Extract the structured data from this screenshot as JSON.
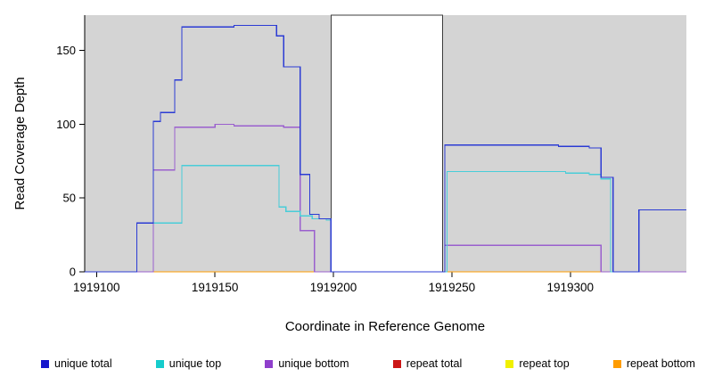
{
  "chart_data": {
    "type": "line",
    "title": "",
    "xlabel": "Coordinate in Reference Genome",
    "ylabel": "Read Coverage Depth",
    "xlim": [
      1919095,
      1919349
    ],
    "ylim": [
      0,
      174
    ],
    "x_ticks": [
      1919100,
      1919150,
      1919200,
      1919250,
      1919300
    ],
    "y_ticks": [
      0,
      50,
      100,
      150
    ],
    "grid": false,
    "region_color": "#d4d4d4",
    "background_regions": [
      {
        "x0": 1919095,
        "x1": 1919199
      },
      {
        "x0": 1919246,
        "x1": 1919349
      }
    ],
    "gap_region": {
      "x0": 1919199,
      "x1": 1919246
    },
    "draw_order": [
      3,
      4,
      5,
      2,
      1,
      0
    ],
    "series": [
      {
        "name": "unique total",
        "color": "#2b3bd4",
        "points": [
          [
            1919095,
            0
          ],
          [
            1919117,
            33
          ],
          [
            1919124,
            102
          ],
          [
            1919127,
            108
          ],
          [
            1919133,
            130
          ],
          [
            1919136,
            166
          ],
          [
            1919158,
            167
          ],
          [
            1919176,
            160
          ],
          [
            1919179,
            139
          ],
          [
            1919186,
            66
          ],
          [
            1919190,
            39
          ],
          [
            1919194,
            36
          ],
          [
            1919199,
            0
          ],
          [
            1919247,
            86
          ],
          [
            1919295,
            85
          ],
          [
            1919308,
            84
          ],
          [
            1919313,
            64
          ],
          [
            1919318,
            0
          ],
          [
            1919329,
            42
          ]
        ]
      },
      {
        "name": "unique top",
        "color": "#49cdd8",
        "points": [
          [
            1919095,
            0
          ],
          [
            1919117,
            33
          ],
          [
            1919136,
            72
          ],
          [
            1919177,
            44
          ],
          [
            1919180,
            41
          ],
          [
            1919186,
            38
          ],
          [
            1919191,
            36
          ],
          [
            1919197,
            35
          ],
          [
            1919199,
            0
          ],
          [
            1919248,
            68
          ],
          [
            1919298,
            67
          ],
          [
            1919308,
            66
          ],
          [
            1919313,
            63
          ],
          [
            1919317,
            0
          ],
          [
            1919329,
            42
          ]
        ]
      },
      {
        "name": "unique bottom",
        "color": "#9a5fce",
        "points": [
          [
            1919095,
            0
          ],
          [
            1919124,
            69
          ],
          [
            1919133,
            98
          ],
          [
            1919150,
            100
          ],
          [
            1919158,
            99
          ],
          [
            1919179,
            98
          ],
          [
            1919186,
            28
          ],
          [
            1919192,
            0
          ],
          [
            1919247,
            18
          ],
          [
            1919313,
            0
          ]
        ]
      },
      {
        "name": "repeat total",
        "color": "#cc1616",
        "points": [
          [
            1919095,
            0
          ]
        ]
      },
      {
        "name": "repeat top",
        "color": "#f0ec00",
        "points": [
          [
            1919095,
            0
          ]
        ]
      },
      {
        "name": "repeat bottom",
        "color": "#ff9c00",
        "points": [
          [
            1919095,
            0
          ]
        ]
      }
    ],
    "legend": [
      {
        "label": "unique total",
        "color": "#1616cc"
      },
      {
        "label": "unique top",
        "color": "#16cccc"
      },
      {
        "label": "unique bottom",
        "color": "#8f3fcc"
      },
      {
        "label": "repeat total",
        "color": "#cc1616"
      },
      {
        "label": "repeat top",
        "color": "#f0f000"
      },
      {
        "label": "repeat bottom",
        "color": "#ff9c00"
      }
    ]
  }
}
